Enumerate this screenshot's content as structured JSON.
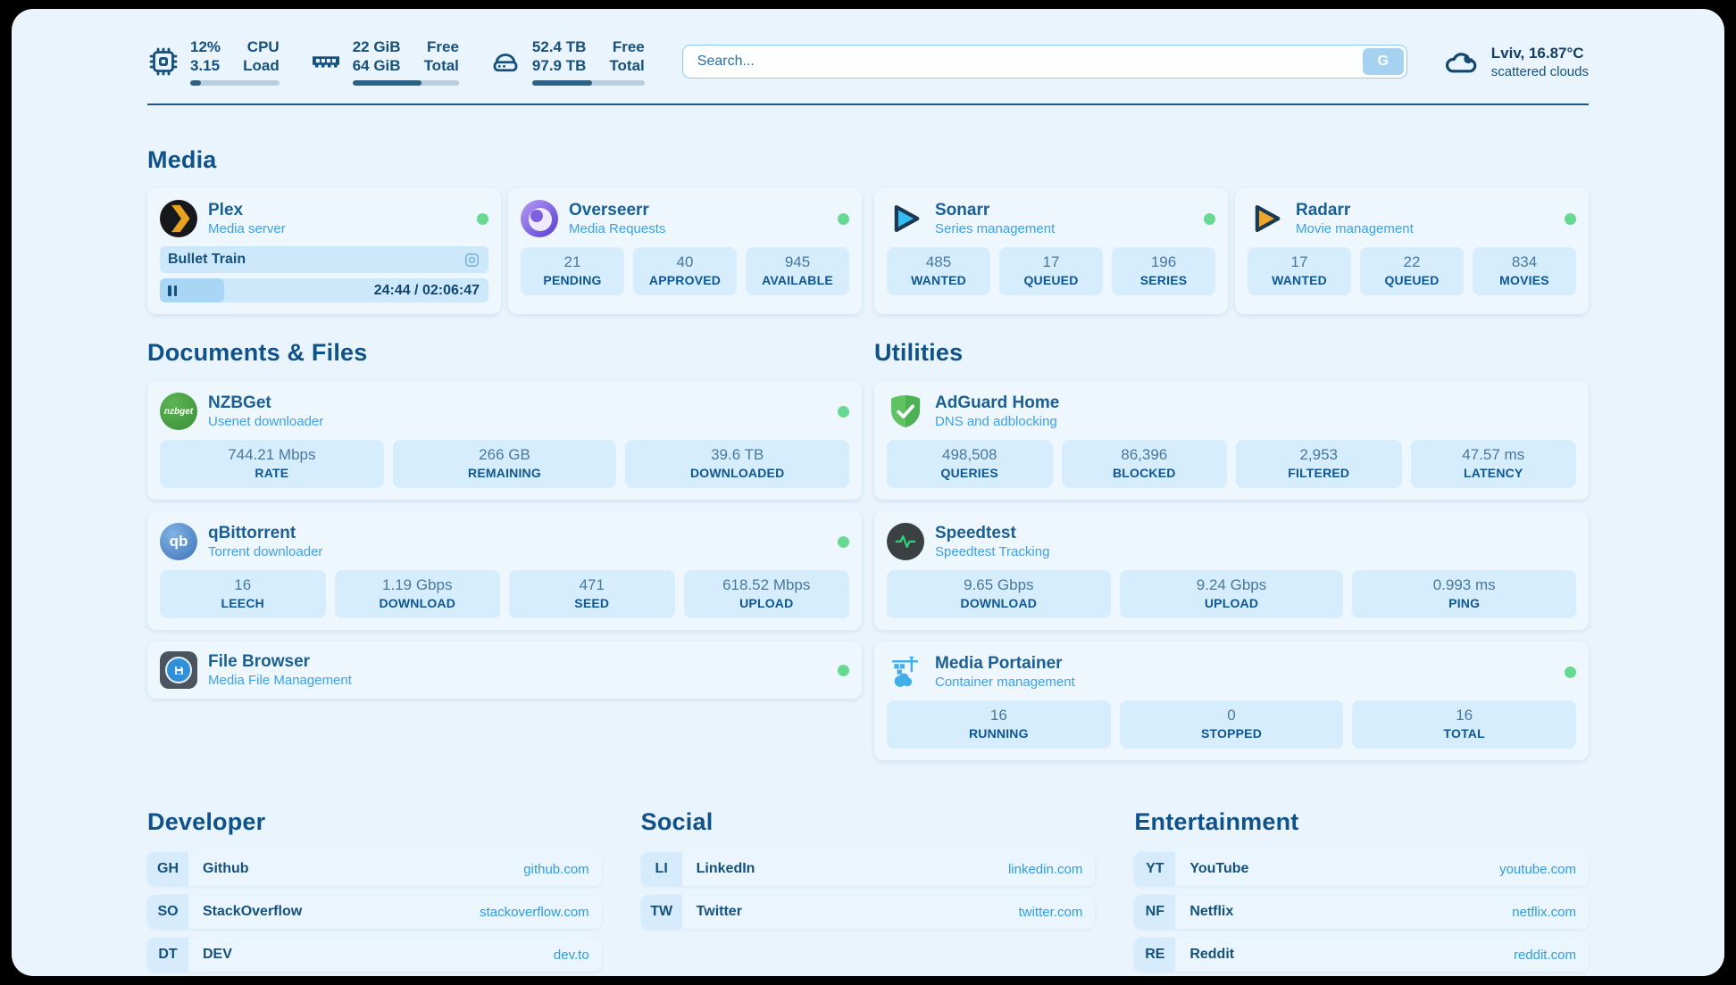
{
  "colors": {
    "accent_dark_blue": "#0f5189",
    "subtitle_blue": "#3da0ea",
    "link_blue": "#2f9ce8",
    "status_online_green": "#67d993",
    "card_background": "#eef7fe",
    "stat_pill_background": "#d5edfd",
    "page_background": "#e9f4fd"
  },
  "topbar": {
    "cpu": {
      "icon": "cpu-icon",
      "value1": "12%",
      "value2": "3.15",
      "label1": "CPU",
      "label2": "Load",
      "progress_pct": 12
    },
    "memory": {
      "icon": "memory-icon",
      "value1": "22 GiB",
      "value2": "64 GiB",
      "label1": "Free",
      "label2": "Total",
      "progress_pct": 65
    },
    "disk": {
      "icon": "disk-icon",
      "value1": "52.4 TB",
      "value2": "97.9 TB",
      "label1": "Free",
      "label2": "Total",
      "progress_pct": 53
    },
    "search": {
      "placeholder": "Search...",
      "button_label": "G"
    },
    "weather": {
      "icon": "cloud-icon",
      "location_temp": "Lviv, 16.87°C",
      "condition": "scattered clouds"
    }
  },
  "sections": {
    "media": {
      "title": "Media",
      "apps": [
        {
          "icon": "plex-icon",
          "name": "Plex",
          "desc": "Media server",
          "online": true,
          "now_playing": {
            "title": "Bullet Train",
            "time": "24:44 / 02:06:47",
            "progress_pct": 19.5
          }
        },
        {
          "icon": "overseerr-icon",
          "name": "Overseerr",
          "desc": "Media Requests",
          "online": true,
          "stats": [
            {
              "value": "21",
              "label": "PENDING"
            },
            {
              "value": "40",
              "label": "APPROVED"
            },
            {
              "value": "945",
              "label": "AVAILABLE"
            }
          ]
        },
        {
          "icon": "sonarr-icon",
          "name": "Sonarr",
          "desc": "Series management",
          "online": true,
          "stats": [
            {
              "value": "485",
              "label": "WANTED"
            },
            {
              "value": "17",
              "label": "QUEUED"
            },
            {
              "value": "196",
              "label": "SERIES"
            }
          ]
        },
        {
          "icon": "radarr-icon",
          "name": "Radarr",
          "desc": "Movie management",
          "online": true,
          "stats": [
            {
              "value": "17",
              "label": "WANTED"
            },
            {
              "value": "22",
              "label": "QUEUED"
            },
            {
              "value": "834",
              "label": "MOVIES"
            }
          ]
        }
      ]
    },
    "documents": {
      "title": "Documents & Files",
      "apps": [
        {
          "icon": "nzbget-icon",
          "icon_text": "nzbget",
          "name": "NZBGet",
          "desc": "Usenet downloader",
          "online": true,
          "stats": [
            {
              "value": "744.21 Mbps",
              "label": "RATE"
            },
            {
              "value": "266 GB",
              "label": "REMAINING"
            },
            {
              "value": "39.6 TB",
              "label": "DOWNLOADED"
            }
          ]
        },
        {
          "icon": "qbittorrent-icon",
          "icon_text": "qb",
          "name": "qBittorrent",
          "desc": "Torrent downloader",
          "online": true,
          "stats": [
            {
              "value": "16",
              "label": "LEECH"
            },
            {
              "value": "1.19 Gbps",
              "label": "DOWNLOAD"
            },
            {
              "value": "471",
              "label": "SEED"
            },
            {
              "value": "618.52 Mbps",
              "label": "UPLOAD"
            }
          ]
        },
        {
          "icon": "filebrowser-icon",
          "name": "File Browser",
          "desc": "Media File Management",
          "online": true,
          "stats": []
        }
      ]
    },
    "utilities": {
      "title": "Utilities",
      "apps": [
        {
          "icon": "adguard-icon",
          "name": "AdGuard Home",
          "desc": "DNS and adblocking",
          "online": false,
          "stats": [
            {
              "value": "498,508",
              "label": "QUERIES"
            },
            {
              "value": "86,396",
              "label": "BLOCKED"
            },
            {
              "value": "2,953",
              "label": "FILTERED"
            },
            {
              "value": "47.57 ms",
              "label": "LATENCY"
            }
          ]
        },
        {
          "icon": "speedtest-icon",
          "name": "Speedtest",
          "desc": "Speedtest Tracking",
          "online": false,
          "stats": [
            {
              "value": "9.65 Gbps",
              "label": "DOWNLOAD"
            },
            {
              "value": "9.24 Gbps",
              "label": "UPLOAD"
            },
            {
              "value": "0.993 ms",
              "label": "PING"
            }
          ]
        },
        {
          "icon": "portainer-icon",
          "name": "Media Portainer",
          "desc": "Container management",
          "online": true,
          "stats": [
            {
              "value": "16",
              "label": "RUNNING"
            },
            {
              "value": "0",
              "label": "STOPPED"
            },
            {
              "value": "16",
              "label": "TOTAL"
            }
          ]
        }
      ]
    }
  },
  "bookmarks": {
    "developer": {
      "title": "Developer",
      "items": [
        {
          "abbr": "GH",
          "name": "Github",
          "url": "github.com"
        },
        {
          "abbr": "SO",
          "name": "StackOverflow",
          "url": "stackoverflow.com"
        },
        {
          "abbr": "DT",
          "name": "DEV",
          "url": "dev.to"
        }
      ]
    },
    "social": {
      "title": "Social",
      "items": [
        {
          "abbr": "LI",
          "name": "LinkedIn",
          "url": "linkedin.com"
        },
        {
          "abbr": "TW",
          "name": "Twitter",
          "url": "twitter.com"
        }
      ]
    },
    "entertainment": {
      "title": "Entertainment",
      "items": [
        {
          "abbr": "YT",
          "name": "YouTube",
          "url": "youtube.com"
        },
        {
          "abbr": "NF",
          "name": "Netflix",
          "url": "netflix.com"
        },
        {
          "abbr": "RE",
          "name": "Reddit",
          "url": "reddit.com"
        }
      ]
    }
  }
}
